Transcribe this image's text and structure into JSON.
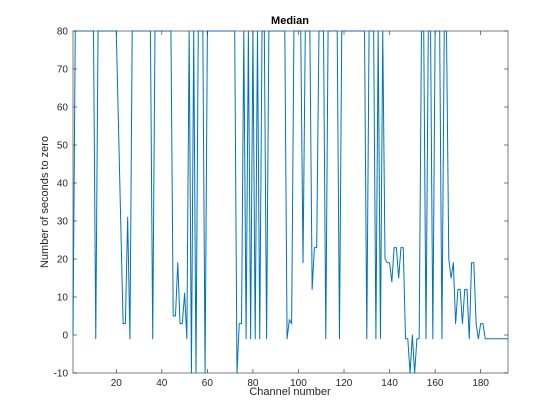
{
  "chart_data": {
    "type": "line",
    "title": "Median",
    "xlabel": "Channel number",
    "ylabel": "Number of seconds to zero",
    "xlim": [
      1,
      192
    ],
    "ylim": [
      -10,
      80
    ],
    "xticks": [
      20,
      40,
      60,
      80,
      100,
      120,
      140,
      160,
      180
    ],
    "yticks": [
      -10,
      0,
      10,
      20,
      30,
      40,
      50,
      60,
      70,
      80
    ],
    "grid": false,
    "series": [
      {
        "color": "#0072BD",
        "points": [
          [
            1,
            0
          ],
          [
            2,
            80
          ],
          [
            10,
            80
          ],
          [
            11,
            -1
          ],
          [
            12,
            80
          ],
          [
            20,
            80
          ],
          [
            23,
            3
          ],
          [
            24,
            3
          ],
          [
            25,
            31
          ],
          [
            26,
            -1
          ],
          [
            27,
            80
          ],
          [
            35,
            80
          ],
          [
            36,
            -1
          ],
          [
            37,
            80
          ],
          [
            44,
            80
          ],
          [
            45,
            5
          ],
          [
            46,
            5
          ],
          [
            47,
            19
          ],
          [
            48,
            3
          ],
          [
            49,
            3
          ],
          [
            50,
            11
          ],
          [
            51,
            -1
          ],
          [
            52,
            80
          ],
          [
            53,
            -10
          ],
          [
            54,
            80
          ],
          [
            55,
            -10
          ],
          [
            56,
            80
          ],
          [
            58,
            80
          ],
          [
            59,
            -10
          ],
          [
            60,
            80
          ],
          [
            72,
            80
          ],
          [
            73,
            -10
          ],
          [
            74,
            3
          ],
          [
            75,
            3
          ],
          [
            76,
            80
          ],
          [
            77,
            -1
          ],
          [
            78,
            80
          ],
          [
            79,
            -1
          ],
          [
            80,
            80
          ],
          [
            81,
            -1
          ],
          [
            82,
            80
          ],
          [
            83,
            -1
          ],
          [
            84,
            80
          ],
          [
            85,
            80
          ],
          [
            86,
            -1
          ],
          [
            87,
            80
          ],
          [
            94,
            80
          ],
          [
            95,
            -1
          ],
          [
            96,
            4
          ],
          [
            97,
            3
          ],
          [
            98,
            80
          ],
          [
            101,
            80
          ],
          [
            102,
            19
          ],
          [
            103,
            80
          ],
          [
            105,
            80
          ],
          [
            106,
            12
          ],
          [
            107,
            23
          ],
          [
            108,
            23
          ],
          [
            109,
            80
          ],
          [
            111,
            80
          ],
          [
            112,
            -1
          ],
          [
            113,
            80
          ],
          [
            117,
            80
          ],
          [
            118,
            -1
          ],
          [
            119,
            80
          ],
          [
            129,
            80
          ],
          [
            130,
            -1
          ],
          [
            131,
            80
          ],
          [
            133,
            80
          ],
          [
            134,
            -1
          ],
          [
            135,
            80
          ],
          [
            136,
            -1
          ],
          [
            137,
            80
          ],
          [
            138,
            20
          ],
          [
            139,
            19
          ],
          [
            140,
            19
          ],
          [
            141,
            14
          ],
          [
            142,
            23
          ],
          [
            143,
            23
          ],
          [
            144,
            15
          ],
          [
            145,
            23
          ],
          [
            146,
            23
          ],
          [
            147,
            -1
          ],
          [
            148,
            -1
          ],
          [
            149,
            -10
          ],
          [
            150,
            0
          ],
          [
            151,
            -10
          ],
          [
            152,
            -1
          ],
          [
            153,
            -1
          ],
          [
            154,
            80
          ],
          [
            155,
            80
          ],
          [
            156,
            -1
          ],
          [
            157,
            80
          ],
          [
            158,
            80
          ],
          [
            159,
            -1
          ],
          [
            160,
            80
          ],
          [
            162,
            80
          ],
          [
            163,
            -1
          ],
          [
            164,
            80
          ],
          [
            165,
            80
          ],
          [
            166,
            20
          ],
          [
            167,
            15
          ],
          [
            168,
            19
          ],
          [
            169,
            3
          ],
          [
            170,
            12
          ],
          [
            171,
            12
          ],
          [
            172,
            3
          ],
          [
            173,
            12
          ],
          [
            174,
            12
          ],
          [
            175,
            -1
          ],
          [
            176,
            19
          ],
          [
            177,
            19
          ],
          [
            178,
            3
          ],
          [
            179,
            -1
          ],
          [
            180,
            3
          ],
          [
            181,
            3
          ],
          [
            182,
            -1
          ],
          [
            183,
            -1
          ],
          [
            184,
            -1
          ],
          [
            192,
            -1
          ]
        ]
      }
    ]
  }
}
